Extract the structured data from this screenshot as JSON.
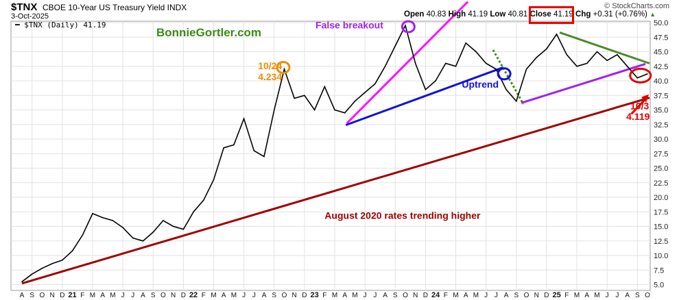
{
  "header": {
    "symbol": "$TNX",
    "description": "CBOE 10-Year US Treasury Yield INDX",
    "date": "3-Oct-2025",
    "legend": "$TNX (Daily) 41.19",
    "brand": "© StockCharts.com",
    "open_label": "Open",
    "open": "40.83",
    "high_label": "High",
    "high": "41.19",
    "low_label": "Low",
    "low": "40.81",
    "close_label": "Close",
    "close": "41.19",
    "chg_label": "Chg",
    "chg": "+0.31 (+0.76%)",
    "up_color": "#2e8b2e"
  },
  "watermark": "BonnieGortler.com",
  "chart_data": {
    "type": "line",
    "title": "$TNX CBOE 10-Year US Treasury Yield INDX",
    "xlabel": "",
    "ylabel": "",
    "ylim": [
      5,
      50
    ],
    "yticks": [
      "5.0",
      "7.5",
      "10.0",
      "12.5",
      "15.0",
      "17.5",
      "20.0",
      "22.5",
      "25.0",
      "27.5",
      "30.0",
      "32.5",
      "35.0",
      "37.5",
      "40.0",
      "42.5",
      "45.0",
      "47.5",
      "50.0"
    ],
    "xticks": [
      "A",
      "S",
      "O",
      "N",
      "D",
      "21",
      "F",
      "M",
      "A",
      "M",
      "J",
      "J",
      "A",
      "S",
      "O",
      "N",
      "D",
      "22",
      "F",
      "M",
      "A",
      "M",
      "J",
      "J",
      "A",
      "S",
      "O",
      "N",
      "D",
      "23",
      "F",
      "M",
      "A",
      "M",
      "J",
      "J",
      "A",
      "S",
      "O",
      "N",
      "D",
      "24",
      "F",
      "M",
      "A",
      "M",
      "J",
      "J",
      "A",
      "S",
      "O",
      "N",
      "D",
      "25",
      "F",
      "M",
      "A",
      "M",
      "J",
      "J",
      "A",
      "S",
      "O"
    ],
    "series": [
      {
        "name": "$TNX (Daily)",
        "color": "#000000",
        "values": [
          5.5,
          6.8,
          7.8,
          8.6,
          9.2,
          10.8,
          13.5,
          17.2,
          16.5,
          16.0,
          14.8,
          13.0,
          12.5,
          14.0,
          16.0,
          15.0,
          14.5,
          17.5,
          19.5,
          23.0,
          28.5,
          29.0,
          33.5,
          28.0,
          27.0,
          35.0,
          42.0,
          37.0,
          37.5,
          35.0,
          39.0,
          35.0,
          34.5,
          36.5,
          38.0,
          39.5,
          42.5,
          46.0,
          49.5,
          43.0,
          38.5,
          40.0,
          43.0,
          42.5,
          46.5,
          45.0,
          43.0,
          42.0,
          38.5,
          36.5,
          42.0,
          44.0,
          45.5,
          48.0,
          44.5,
          42.5,
          43.0,
          45.0,
          43.5,
          44.5,
          42.5,
          40.5,
          41.19
        ]
      }
    ],
    "trendlines": [
      {
        "name": "long-term-support",
        "color": "#a00000",
        "from": [
          0,
          5.2
        ],
        "to": [
          62.2,
          37.1
        ]
      },
      {
        "name": "false-breakout-line",
        "color": "#ff10ff",
        "from": [
          32.2,
          32.7
        ],
        "to": [
          44.2,
          53.6
        ]
      },
      {
        "name": "uptrend-line",
        "color": "#1010e0",
        "from": [
          32.1,
          32.4
        ],
        "to": [
          47.7,
          42.3
        ]
      },
      {
        "name": "dotted-downtrend",
        "color": "#3a8a16",
        "from": [
          46.7,
          45.3
        ],
        "to": [
          49.7,
          36.0
        ],
        "dashed": true
      },
      {
        "name": "support-2024-2025",
        "color": "#a020f0",
        "from": [
          49.5,
          36.2
        ],
        "to": [
          61.8,
          42.9
        ]
      },
      {
        "name": "resistance-2025",
        "color": "#4a8a2a",
        "from": [
          53.3,
          48.3
        ],
        "to": [
          62.2,
          43.0
        ]
      }
    ],
    "circles": [
      {
        "name": "peak-oct-2023",
        "color": "#a020f0",
        "at": [
          38.3,
          49.3
        ]
      },
      {
        "name": "peak-oct-2022",
        "color": "#f08c00",
        "at": [
          25.9,
          42.3
        ]
      },
      {
        "name": "uptrend-break",
        "color": "#1010e0",
        "at": [
          47.8,
          41.2
        ]
      },
      {
        "name": "current",
        "color": "#e00000",
        "at": [
          61.3,
          40.9
        ]
      }
    ],
    "annotations": [
      {
        "name": "false-breakout-label",
        "text": "False breakout",
        "color": "#a020f0",
        "at": [
          29.1,
          49.0
        ]
      },
      {
        "name": "oct24-date-label",
        "text": "10/24",
        "color": "#f08c00",
        "at": [
          23.4,
          42.0
        ]
      },
      {
        "name": "oct24-value-label",
        "text": "4.234",
        "color": "#f08c00",
        "at": [
          23.4,
          40.1
        ]
      },
      {
        "name": "uptrend-label",
        "text": "Uptrend",
        "color": "#1010e0",
        "at": [
          43.6,
          38.8
        ]
      },
      {
        "name": "oct3-date-label",
        "text": "10/3",
        "color": "#e00000",
        "at": [
          60.3,
          35.1
        ]
      },
      {
        "name": "oct3-value-label",
        "text": "4.119",
        "color": "#e00000",
        "at": [
          59.9,
          33.3
        ]
      },
      {
        "name": "trend-caption",
        "text": "August 2020 rates trending higher",
        "color": "#a00000",
        "at": [
          30.0,
          16.3
        ]
      }
    ]
  }
}
